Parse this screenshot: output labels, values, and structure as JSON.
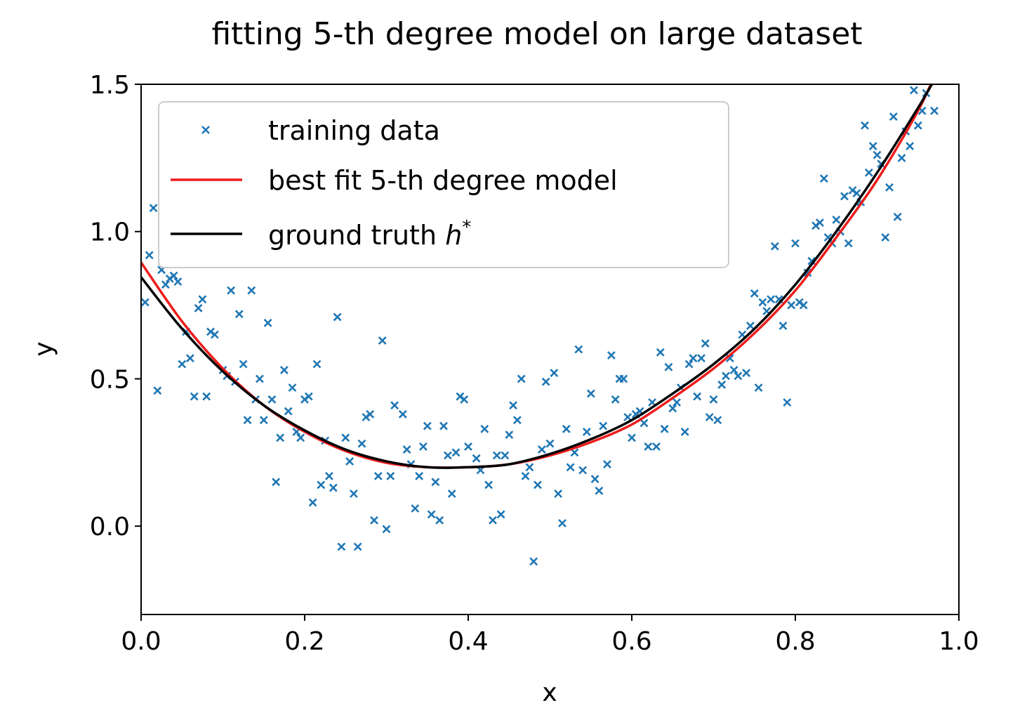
{
  "chart_data": {
    "type": "scatter",
    "title": "fitting 5-th degree model on large dataset",
    "xlabel": "x",
    "ylabel": "y",
    "xlim": [
      0.0,
      1.0
    ],
    "ylim": [
      -0.3,
      1.5
    ],
    "xticks": [
      "0.0",
      "0.2",
      "0.4",
      "0.6",
      "0.8",
      "1.0"
    ],
    "yticks": [
      "0.0",
      "0.5",
      "1.0",
      "1.5"
    ],
    "grid": false,
    "legend_position": "top-left",
    "legend": {
      "training_data": "training data",
      "best_fit": "best fit 5-th degree model",
      "ground_truth": "ground truth ",
      "ground_truth_symbol": "h",
      "ground_truth_superscript": "*"
    },
    "colors": {
      "points": "#1f77b4",
      "best_fit": "#ee1c1c",
      "ground_truth": "#000000"
    },
    "series": [
      {
        "name": "training data",
        "kind": "scatter",
        "points": [
          [
            0.005,
            0.76
          ],
          [
            0.01,
            0.92
          ],
          [
            0.015,
            1.08
          ],
          [
            0.02,
            0.46
          ],
          [
            0.025,
            0.87
          ],
          [
            0.03,
            0.82
          ],
          [
            0.035,
            0.84
          ],
          [
            0.04,
            0.85
          ],
          [
            0.045,
            0.83
          ],
          [
            0.05,
            0.55
          ],
          [
            0.055,
            0.66
          ],
          [
            0.06,
            0.57
          ],
          [
            0.065,
            0.44
          ],
          [
            0.07,
            0.74
          ],
          [
            0.075,
            0.77
          ],
          [
            0.08,
            0.44
          ],
          [
            0.085,
            0.66
          ],
          [
            0.09,
            0.65
          ],
          [
            0.1,
            0.53
          ],
          [
            0.105,
            0.51
          ],
          [
            0.11,
            0.8
          ],
          [
            0.115,
            0.49
          ],
          [
            0.12,
            0.72
          ],
          [
            0.125,
            0.55
          ],
          [
            0.13,
            0.36
          ],
          [
            0.135,
            0.8
          ],
          [
            0.14,
            0.43
          ],
          [
            0.145,
            0.5
          ],
          [
            0.15,
            0.36
          ],
          [
            0.155,
            0.69
          ],
          [
            0.16,
            0.43
          ],
          [
            0.165,
            0.15
          ],
          [
            0.17,
            0.3
          ],
          [
            0.175,
            0.53
          ],
          [
            0.18,
            0.39
          ],
          [
            0.185,
            0.47
          ],
          [
            0.19,
            0.32
          ],
          [
            0.195,
            0.3
          ],
          [
            0.2,
            0.43
          ],
          [
            0.205,
            0.44
          ],
          [
            0.21,
            0.08
          ],
          [
            0.215,
            0.55
          ],
          [
            0.22,
            0.14
          ],
          [
            0.225,
            0.29
          ],
          [
            0.23,
            0.17
          ],
          [
            0.235,
            0.13
          ],
          [
            0.24,
            0.71
          ],
          [
            0.245,
            -0.07
          ],
          [
            0.25,
            0.3
          ],
          [
            0.255,
            0.22
          ],
          [
            0.26,
            0.11
          ],
          [
            0.265,
            -0.07
          ],
          [
            0.27,
            0.28
          ],
          [
            0.275,
            0.37
          ],
          [
            0.28,
            0.38
          ],
          [
            0.285,
            0.02
          ],
          [
            0.29,
            0.17
          ],
          [
            0.295,
            0.63
          ],
          [
            0.3,
            -0.01
          ],
          [
            0.305,
            0.17
          ],
          [
            0.31,
            0.41
          ],
          [
            0.32,
            0.38
          ],
          [
            0.325,
            0.26
          ],
          [
            0.33,
            0.21
          ],
          [
            0.335,
            0.06
          ],
          [
            0.34,
            0.17
          ],
          [
            0.345,
            0.27
          ],
          [
            0.35,
            0.34
          ],
          [
            0.355,
            0.04
          ],
          [
            0.36,
            0.15
          ],
          [
            0.365,
            0.02
          ],
          [
            0.37,
            0.34
          ],
          [
            0.375,
            0.24
          ],
          [
            0.38,
            0.11
          ],
          [
            0.385,
            0.25
          ],
          [
            0.39,
            0.44
          ],
          [
            0.395,
            0.43
          ],
          [
            0.4,
            0.27
          ],
          [
            0.41,
            0.23
          ],
          [
            0.415,
            0.19
          ],
          [
            0.42,
            0.33
          ],
          [
            0.425,
            0.14
          ],
          [
            0.43,
            0.02
          ],
          [
            0.435,
            0.24
          ],
          [
            0.44,
            0.04
          ],
          [
            0.445,
            0.24
          ],
          [
            0.45,
            0.31
          ],
          [
            0.455,
            0.41
          ],
          [
            0.46,
            0.36
          ],
          [
            0.465,
            0.5
          ],
          [
            0.47,
            0.17
          ],
          [
            0.475,
            0.2
          ],
          [
            0.48,
            -0.12
          ],
          [
            0.485,
            0.14
          ],
          [
            0.49,
            0.26
          ],
          [
            0.495,
            0.49
          ],
          [
            0.5,
            0.28
          ],
          [
            0.505,
            0.52
          ],
          [
            0.51,
            0.11
          ],
          [
            0.515,
            0.01
          ],
          [
            0.52,
            0.33
          ],
          [
            0.525,
            0.2
          ],
          [
            0.53,
            0.25
          ],
          [
            0.535,
            0.6
          ],
          [
            0.54,
            0.19
          ],
          [
            0.545,
            0.32
          ],
          [
            0.55,
            0.45
          ],
          [
            0.555,
            0.16
          ],
          [
            0.56,
            0.12
          ],
          [
            0.565,
            0.34
          ],
          [
            0.57,
            0.21
          ],
          [
            0.575,
            0.58
          ],
          [
            0.58,
            0.43
          ],
          [
            0.585,
            0.5
          ],
          [
            0.59,
            0.5
          ],
          [
            0.595,
            0.37
          ],
          [
            0.6,
            0.3
          ],
          [
            0.605,
            0.38
          ],
          [
            0.61,
            0.39
          ],
          [
            0.615,
            0.35
          ],
          [
            0.62,
            0.27
          ],
          [
            0.625,
            0.42
          ],
          [
            0.63,
            0.27
          ],
          [
            0.635,
            0.59
          ],
          [
            0.64,
            0.33
          ],
          [
            0.645,
            0.54
          ],
          [
            0.65,
            0.4
          ],
          [
            0.655,
            0.42
          ],
          [
            0.66,
            0.47
          ],
          [
            0.665,
            0.32
          ],
          [
            0.67,
            0.55
          ],
          [
            0.675,
            0.57
          ],
          [
            0.68,
            0.44
          ],
          [
            0.685,
            0.57
          ],
          [
            0.69,
            0.62
          ],
          [
            0.695,
            0.37
          ],
          [
            0.7,
            0.43
          ],
          [
            0.705,
            0.36
          ],
          [
            0.71,
            0.48
          ],
          [
            0.715,
            0.51
          ],
          [
            0.72,
            0.57
          ],
          [
            0.725,
            0.53
          ],
          [
            0.73,
            0.51
          ],
          [
            0.735,
            0.65
          ],
          [
            0.74,
            0.52
          ],
          [
            0.745,
            0.68
          ],
          [
            0.75,
            0.79
          ],
          [
            0.755,
            0.47
          ],
          [
            0.76,
            0.76
          ],
          [
            0.765,
            0.73
          ],
          [
            0.77,
            0.77
          ],
          [
            0.775,
            0.95
          ],
          [
            0.78,
            0.77
          ],
          [
            0.785,
            0.68
          ],
          [
            0.79,
            0.42
          ],
          [
            0.795,
            0.75
          ],
          [
            0.8,
            0.96
          ],
          [
            0.805,
            0.76
          ],
          [
            0.81,
            0.75
          ],
          [
            0.815,
            0.86
          ],
          [
            0.82,
            0.9
          ],
          [
            0.825,
            1.02
          ],
          [
            0.83,
            1.03
          ],
          [
            0.835,
            1.18
          ],
          [
            0.84,
            0.98
          ],
          [
            0.845,
            0.96
          ],
          [
            0.85,
            1.04
          ],
          [
            0.855,
            1.0
          ],
          [
            0.86,
            1.12
          ],
          [
            0.865,
            0.96
          ],
          [
            0.87,
            1.14
          ],
          [
            0.875,
            1.13
          ],
          [
            0.88,
            1.1
          ],
          [
            0.885,
            1.36
          ],
          [
            0.89,
            1.2
          ],
          [
            0.895,
            1.29
          ],
          [
            0.9,
            1.26
          ],
          [
            0.905,
            1.23
          ],
          [
            0.91,
            0.98
          ],
          [
            0.915,
            1.15
          ],
          [
            0.92,
            1.39
          ],
          [
            0.925,
            1.05
          ],
          [
            0.93,
            1.25
          ],
          [
            0.935,
            1.34
          ],
          [
            0.94,
            1.29
          ],
          [
            0.945,
            1.48
          ],
          [
            0.95,
            1.36
          ],
          [
            0.955,
            1.41
          ],
          [
            0.96,
            1.47
          ],
          [
            0.97,
            1.41
          ]
        ]
      },
      {
        "name": "best fit 5-th degree model",
        "kind": "line",
        "x": [
          0.0,
          0.05,
          0.1,
          0.15,
          0.2,
          0.25,
          0.3,
          0.35,
          0.4,
          0.45,
          0.5,
          0.55,
          0.6,
          0.65,
          0.7,
          0.75,
          0.8,
          0.85,
          0.9,
          0.95,
          0.975
        ],
        "y": [
          0.895,
          0.695,
          0.535,
          0.41,
          0.32,
          0.255,
          0.215,
          0.2,
          0.2,
          0.21,
          0.24,
          0.285,
          0.345,
          0.435,
          0.535,
          0.655,
          0.8,
          0.98,
          1.175,
          1.41,
          1.56
        ]
      },
      {
        "name": "ground truth h*",
        "kind": "line",
        "x": [
          0.0,
          0.05,
          0.1,
          0.15,
          0.2,
          0.25,
          0.3,
          0.35,
          0.4,
          0.45,
          0.5,
          0.55,
          0.6,
          0.65,
          0.7,
          0.75,
          0.8,
          0.85,
          0.9,
          0.95,
          0.975
        ],
        "y": [
          0.845,
          0.67,
          0.525,
          0.41,
          0.325,
          0.26,
          0.22,
          0.2,
          0.2,
          0.21,
          0.245,
          0.295,
          0.36,
          0.45,
          0.55,
          0.67,
          0.82,
          1.0,
          1.2,
          1.42,
          1.54
        ]
      }
    ]
  }
}
